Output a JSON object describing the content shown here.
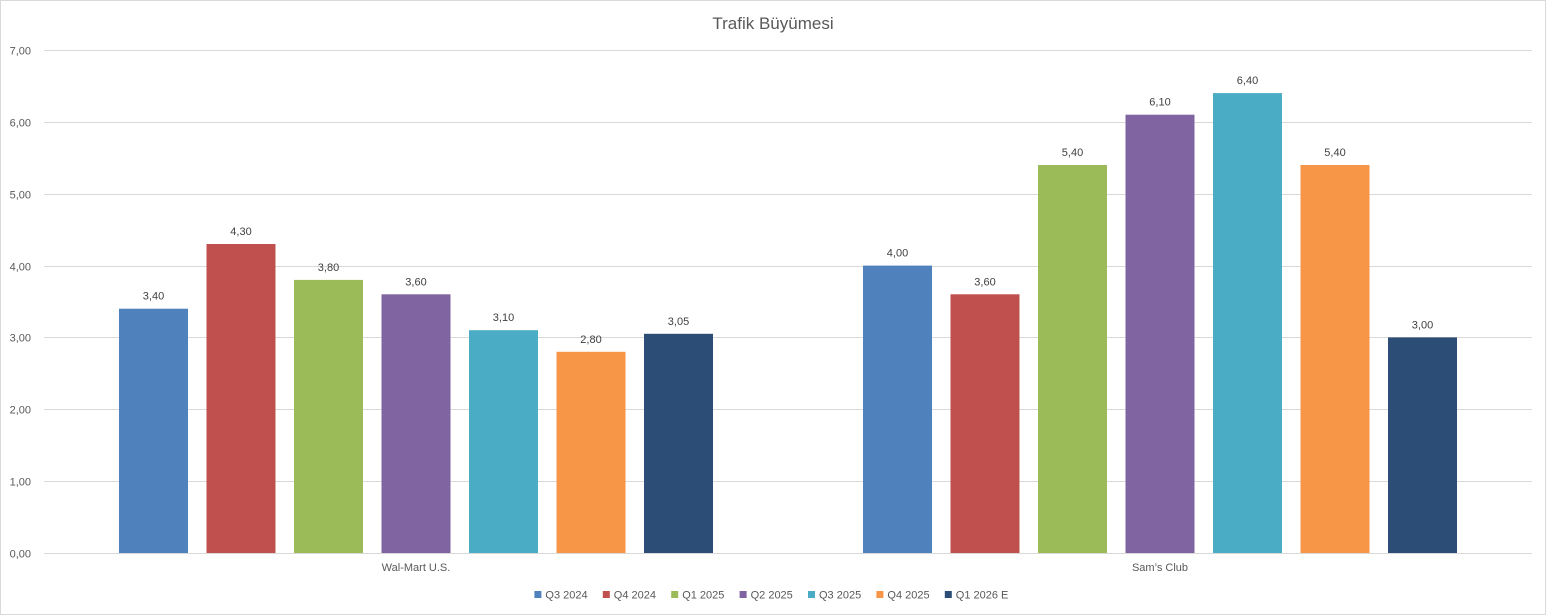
{
  "chart_data": {
    "type": "bar",
    "title": "Trafik Büyümesi",
    "categories": [
      "Wal-Mart U.S.",
      "Sam’s Club"
    ],
    "series": [
      {
        "name": "Q3 2024",
        "color": "#4f81bd",
        "values": [
          3.4,
          4.0
        ],
        "labels": [
          "3,40",
          "4,00"
        ]
      },
      {
        "name": "Q4 2024",
        "color": "#c0504d",
        "values": [
          4.3,
          3.6
        ],
        "labels": [
          "4,30",
          "3,60"
        ]
      },
      {
        "name": "Q1 2025",
        "color": "#9bbb59",
        "values": [
          3.8,
          5.4
        ],
        "labels": [
          "3,80",
          "5,40"
        ]
      },
      {
        "name": "Q2 2025",
        "color": "#8064a2",
        "values": [
          3.6,
          6.1
        ],
        "labels": [
          "3,60",
          "6,10"
        ]
      },
      {
        "name": "Q3 2025",
        "color": "#4bacc6",
        "values": [
          3.1,
          6.4
        ],
        "labels": [
          "3,10",
          "6,40"
        ]
      },
      {
        "name": "Q4 2025",
        "color": "#f79646",
        "values": [
          2.8,
          5.4
        ],
        "labels": [
          "2,80",
          "5,40"
        ]
      },
      {
        "name": "Q1 2026 E",
        "color": "#2c4d75",
        "values": [
          3.05,
          3.0
        ],
        "labels": [
          "3,05",
          "3,00"
        ]
      }
    ],
    "ylim": [
      0,
      7
    ],
    "yticks": [
      0,
      1,
      2,
      3,
      4,
      5,
      6,
      7
    ],
    "ytick_labels": [
      "0,00",
      "1,00",
      "2,00",
      "3,00",
      "4,00",
      "5,00",
      "6,00",
      "7,00"
    ],
    "grid": true,
    "legend_position": "bottom",
    "xlabel": "",
    "ylabel": ""
  }
}
